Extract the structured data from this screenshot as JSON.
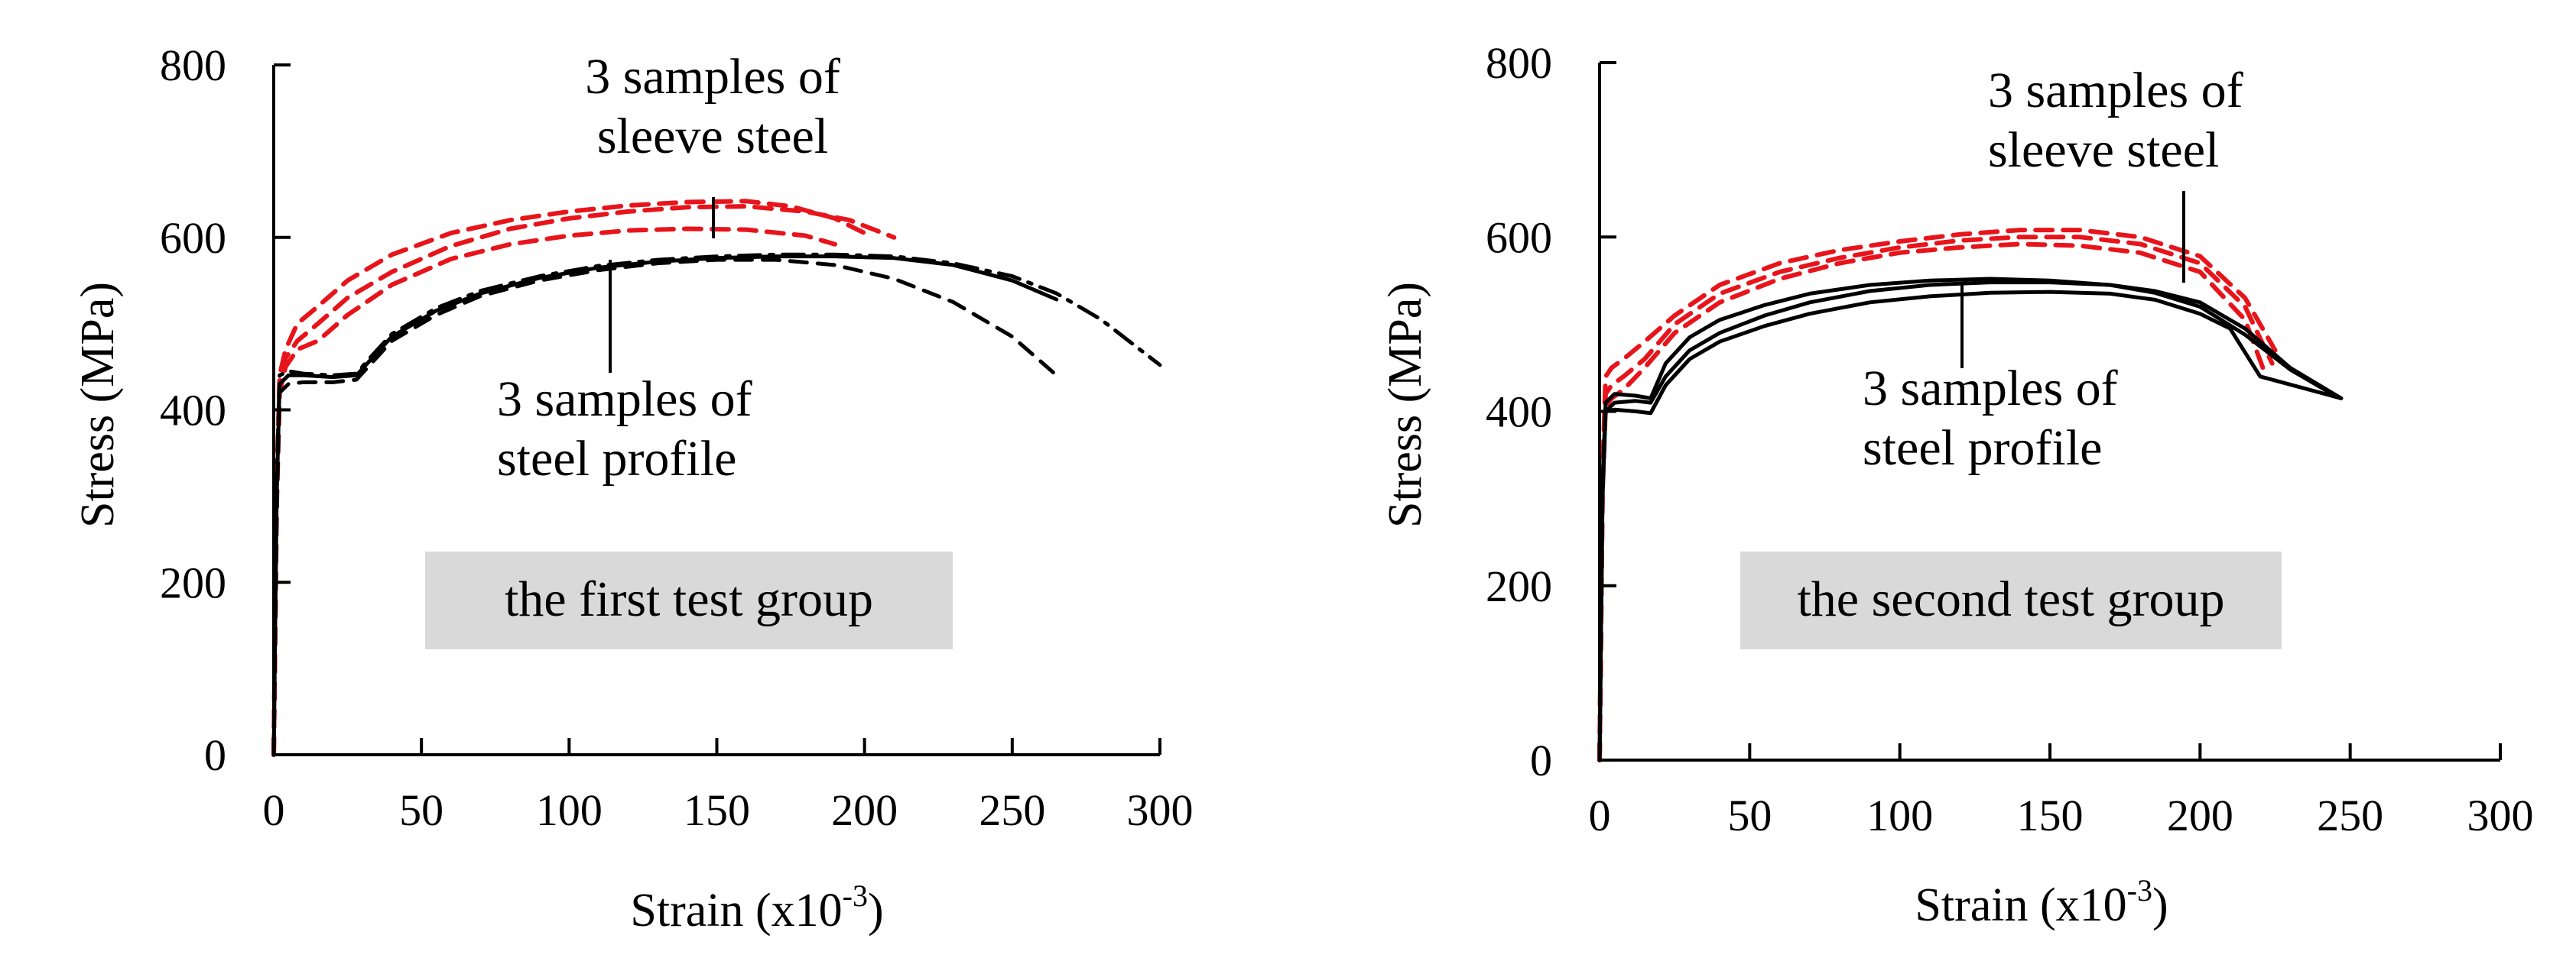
{
  "chart_data": [
    {
      "type": "line",
      "title": "the first test group",
      "xlabel": "Strain (x10⁻³)",
      "xlabel_base": "Strain (x10",
      "xlabel_sup": "-3",
      "xlabel_close": ")",
      "ylabel": "Stress (MPa)",
      "xlim": [
        0,
        300
      ],
      "ylim": [
        0,
        800
      ],
      "xticks": [
        "0",
        "50",
        "100",
        "150",
        "200",
        "250",
        "300"
      ],
      "yticks": [
        "0",
        "200",
        "400",
        "600",
        "800"
      ],
      "annotations": {
        "sleeve": [
          "3 samples of",
          "sleeve steel"
        ],
        "profile": [
          "3 samples of",
          "steel profile"
        ]
      },
      "series": [
        {
          "name": "sleeve steel 1",
          "color": "#e8141b",
          "dash": "dashed",
          "x": [
            0,
            1,
            2,
            4,
            8,
            15,
            25,
            40,
            60,
            80,
            100,
            120,
            140,
            160,
            180,
            195,
            210
          ],
          "y": [
            0,
            300,
            430,
            460,
            480,
            500,
            530,
            560,
            590,
            610,
            622,
            630,
            635,
            636,
            630,
            620,
            600
          ]
        },
        {
          "name": "sleeve steel 2",
          "color": "#e8141b",
          "dash": "dashed",
          "x": [
            0,
            1,
            2,
            4,
            8,
            15,
            25,
            40,
            60,
            80,
            100,
            120,
            140,
            160,
            175,
            190,
            200
          ],
          "y": [
            0,
            310,
            440,
            470,
            500,
            520,
            550,
            580,
            605,
            620,
            630,
            637,
            641,
            642,
            636,
            622,
            605
          ]
        },
        {
          "name": "sleeve steel 3",
          "color": "#e8141b",
          "dash": "dashed",
          "x": [
            0,
            1,
            2,
            4,
            8,
            15,
            25,
            40,
            60,
            80,
            100,
            120,
            140,
            160,
            180,
            190
          ],
          "y": [
            0,
            290,
            420,
            450,
            470,
            480,
            510,
            545,
            575,
            592,
            602,
            608,
            610,
            609,
            602,
            592
          ]
        },
        {
          "name": "steel profile 1",
          "color": "#000000",
          "dash": "solid",
          "x": [
            0,
            1,
            2,
            5,
            10,
            20,
            28,
            32,
            40,
            55,
            70,
            90,
            110,
            130,
            150,
            170,
            190,
            210,
            230,
            250,
            265
          ],
          "y": [
            0,
            300,
            430,
            440,
            440,
            438,
            440,
            455,
            485,
            515,
            535,
            553,
            565,
            572,
            576,
            578,
            578,
            576,
            568,
            550,
            528
          ]
        },
        {
          "name": "steel profile 2",
          "color": "#000000",
          "dash": "dashed",
          "x": [
            0,
            1,
            2,
            5,
            10,
            20,
            28,
            32,
            40,
            55,
            70,
            90,
            110,
            130,
            150,
            170,
            190,
            210,
            230,
            250,
            265
          ],
          "y": [
            0,
            280,
            420,
            430,
            432,
            432,
            435,
            450,
            480,
            510,
            532,
            550,
            562,
            570,
            574,
            574,
            568,
            552,
            525,
            485,
            440
          ]
        },
        {
          "name": "steel profile 3",
          "color": "#000000",
          "dash": "dashdot",
          "x": [
            0,
            1,
            2,
            5,
            10,
            20,
            28,
            32,
            40,
            55,
            70,
            90,
            110,
            130,
            150,
            170,
            190,
            210,
            230,
            250,
            265,
            280,
            300
          ],
          "y": [
            0,
            320,
            440,
            445,
            442,
            440,
            442,
            458,
            488,
            518,
            538,
            555,
            567,
            574,
            578,
            580,
            580,
            578,
            570,
            555,
            535,
            505,
            452
          ]
        }
      ]
    },
    {
      "type": "line",
      "title": "the second test group",
      "xlabel": "Strain (x10⁻³)",
      "xlabel_base": "Strain (x10",
      "xlabel_sup": "-3",
      "xlabel_close": ")",
      "ylabel": "Stress (MPa)",
      "xlim": [
        0,
        300
      ],
      "ylim": [
        0,
        800
      ],
      "xticks": [
        "0",
        "50",
        "100",
        "150",
        "200",
        "250",
        "300"
      ],
      "yticks": [
        "0",
        "200",
        "400",
        "600",
        "800"
      ],
      "annotations": {
        "sleeve": [
          "3 samples of",
          "sleeve steel"
        ],
        "profile": [
          "3 samples of",
          "steel profile"
        ]
      },
      "series": [
        {
          "name": "sleeve steel 1",
          "color": "#e8141b",
          "dash": "dashed",
          "x": [
            0,
            1,
            2,
            4,
            8,
            15,
            25,
            40,
            60,
            80,
            100,
            120,
            140,
            160,
            180,
            200,
            215,
            225
          ],
          "y": [
            0,
            330,
            440,
            450,
            460,
            480,
            510,
            545,
            570,
            585,
            595,
            603,
            608,
            608,
            600,
            578,
            530,
            470
          ]
        },
        {
          "name": "sleeve steel 2",
          "color": "#e8141b",
          "dash": "dashed",
          "x": [
            0,
            1,
            2,
            4,
            8,
            15,
            25,
            40,
            60,
            80,
            100,
            120,
            140,
            160,
            180,
            200,
            215,
            224
          ],
          "y": [
            0,
            320,
            420,
            430,
            440,
            460,
            500,
            535,
            560,
            576,
            588,
            596,
            600,
            600,
            592,
            570,
            520,
            455
          ]
        },
        {
          "name": "sleeve steel 3",
          "color": "#e8141b",
          "dash": "dashed",
          "x": [
            0,
            1,
            2,
            4,
            8,
            15,
            25,
            40,
            60,
            80,
            100,
            120,
            140,
            160,
            180,
            200,
            215,
            222
          ],
          "y": [
            0,
            310,
            405,
            415,
            425,
            450,
            490,
            525,
            552,
            570,
            582,
            588,
            592,
            590,
            582,
            560,
            505,
            440
          ]
        },
        {
          "name": "steel profile 1",
          "color": "#000000",
          "dash": "solid",
          "x": [
            0,
            1,
            2,
            5,
            12,
            17,
            22,
            30,
            40,
            55,
            70,
            90,
            110,
            130,
            150,
            170,
            185,
            200,
            215,
            230,
            247
          ],
          "y": [
            0,
            300,
            400,
            410,
            412,
            410,
            440,
            470,
            490,
            510,
            525,
            538,
            545,
            548,
            548,
            545,
            538,
            525,
            495,
            450,
            415
          ]
        },
        {
          "name": "steel profile 2",
          "color": "#000000",
          "dash": "solid",
          "x": [
            0,
            1,
            2,
            5,
            12,
            17,
            22,
            30,
            40,
            55,
            70,
            90,
            110,
            130,
            150,
            170,
            185,
            200,
            215,
            230,
            245
          ],
          "y": [
            0,
            320,
            410,
            420,
            418,
            415,
            455,
            485,
            505,
            522,
            535,
            545,
            550,
            552,
            550,
            545,
            536,
            520,
            488,
            448,
            418
          ]
        },
        {
          "name": "steel profile 3",
          "color": "#000000",
          "dash": "solid",
          "x": [
            0,
            1,
            2,
            5,
            12,
            17,
            22,
            30,
            40,
            55,
            70,
            90,
            110,
            130,
            150,
            170,
            185,
            200,
            210,
            220,
            247
          ],
          "y": [
            0,
            310,
            400,
            402,
            400,
            398,
            430,
            460,
            480,
            498,
            512,
            525,
            532,
            536,
            537,
            535,
            528,
            512,
            495,
            440,
            415
          ]
        }
      ]
    }
  ]
}
